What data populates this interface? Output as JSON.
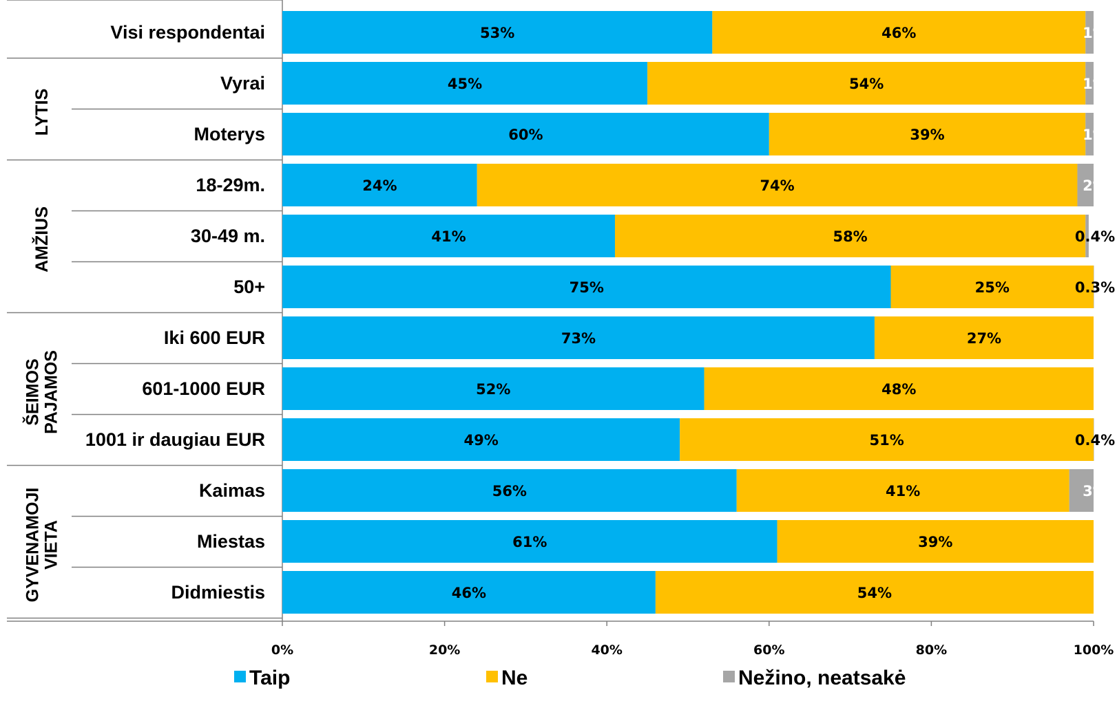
{
  "chart_data": {
    "type": "bar",
    "orientation": "horizontal",
    "stacked": true,
    "categories": [
      "Visi respondentai",
      "Vyrai",
      "Moterys",
      "18-29m.",
      "30-49 m.",
      "50+",
      "Iki 600 EUR",
      "601-1000 EUR",
      "1001 ir daugiau EUR",
      "Kaimas",
      "Miestas",
      "Didmiestis"
    ],
    "groups": [
      {
        "label": [
          "LYTIS"
        ],
        "categories": [
          "Vyrai",
          "Moterys"
        ]
      },
      {
        "label": [
          "AMŽIUS"
        ],
        "categories": [
          "18-29m.",
          "30-49 m.",
          "50+"
        ]
      },
      {
        "label": [
          "ŠEIMOS",
          "PAJAMOS"
        ],
        "categories": [
          "Iki 600 EUR",
          "601-1000 EUR",
          "1001 ir daugiau EUR"
        ]
      },
      {
        "label": [
          "GYVENAMOJI",
          "VIETA"
        ],
        "categories": [
          "Kaimas",
          "Miestas",
          "Didmiestis"
        ]
      }
    ],
    "series": [
      {
        "name": "Taip",
        "color": "#00B0F0",
        "values": [
          53,
          45,
          60,
          24,
          41,
          75,
          73,
          52,
          49,
          56,
          61,
          46
        ],
        "labels": [
          "53%",
          "45%",
          "60%",
          "24%",
          "41%",
          "75%",
          "73%",
          "52%",
          "49%",
          "56%",
          "61%",
          "46%"
        ],
        "label_color": "#000000"
      },
      {
        "name": "Ne",
        "color": "#FFC000",
        "values": [
          46,
          54,
          39,
          74,
          58,
          25,
          27,
          48,
          51,
          41,
          39,
          54
        ],
        "labels": [
          "46%",
          "54%",
          "39%",
          "74%",
          "58%",
          "25%",
          "27%",
          "48%",
          "51%",
          "41%",
          "39%",
          "54%"
        ],
        "label_color": "#000000"
      },
      {
        "name": "Nežino, neatsakė",
        "color": "#A6A6A6",
        "values": [
          1,
          1,
          1,
          2,
          0.4,
          0.3,
          0,
          0,
          0.4,
          3,
          0,
          0
        ],
        "labels": [
          "1%",
          "1%",
          "1%",
          "2%",
          "0.4%",
          "0.3%",
          "",
          "",
          "0.4%",
          "3%",
          "",
          ""
        ],
        "label_colors": [
          "#FFFFFF",
          "#FFFFFF",
          "#FFFFFF",
          "#FFFFFF",
          "#000000",
          "#000000",
          "#000000",
          "#000000",
          "#000000",
          "#FFFFFF",
          "#000000",
          "#000000"
        ]
      }
    ],
    "x_ticks": [
      {
        "value": 0,
        "label": "0%"
      },
      {
        "value": 20,
        "label": "20%"
      },
      {
        "value": 40,
        "label": "40%"
      },
      {
        "value": 60,
        "label": "60%"
      },
      {
        "value": 80,
        "label": "80%"
      },
      {
        "value": 100,
        "label": "100%"
      }
    ],
    "xlim": [
      0,
      100
    ],
    "title": "",
    "xlabel": "",
    "ylabel": "",
    "grid": false,
    "legend_position": "bottom"
  }
}
